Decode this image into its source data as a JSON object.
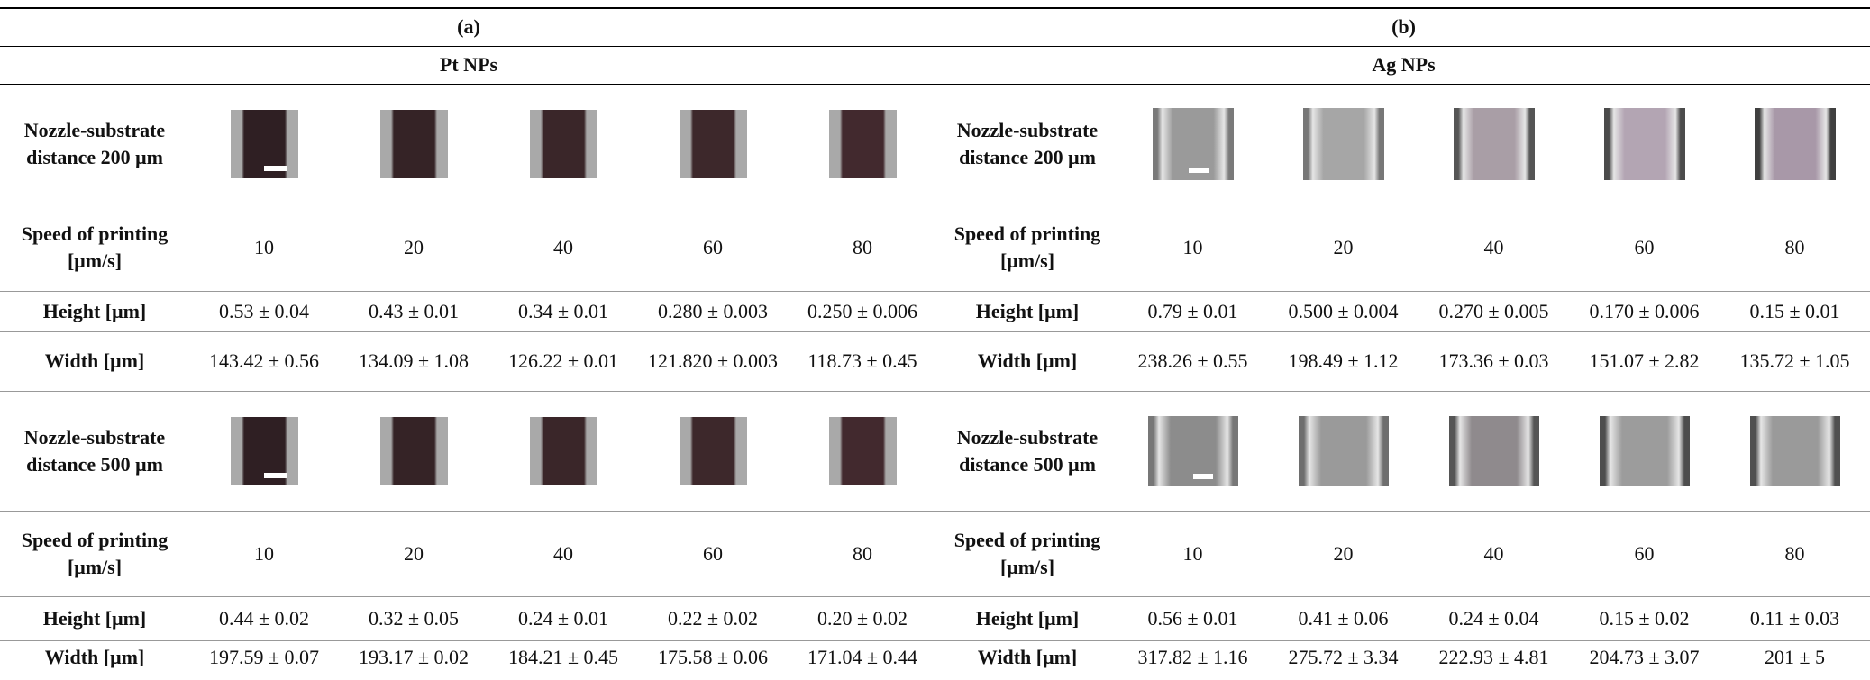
{
  "panels": [
    {
      "label": "(a)",
      "material": "Pt NPs",
      "blocks": [
        {
          "distance_label": "Nozzle-substrate distance 200 μm",
          "speed_label": "Speed of printing [μm/s]",
          "speeds": [
            10,
            20,
            40,
            60,
            80
          ],
          "height_label": "Height [μm]",
          "heights": [
            "0.53 ± 0.04",
            "0.43 ± 0.01",
            "0.34 ± 0.01",
            "0.280 ± 0.003",
            "0.250 ± 0.006"
          ],
          "width_label": "Width [μm]",
          "widths": [
            "143.42 ± 0.56",
            "134.09 ± 1.08",
            "126.22 ± 0.01",
            "121.820 ± 0.003",
            "118.73 ± 0.45"
          ]
        },
        {
          "distance_label": "Nozzle-substrate distance 500 μm",
          "speed_label": "Speed of printing [μm/s]",
          "speeds": [
            10,
            20,
            40,
            60,
            80
          ],
          "height_label": "Height [μm]",
          "heights": [
            "0.44 ± 0.02",
            "0.32 ± 0.05",
            "0.24 ± 0.01",
            "0.22 ± 0.02",
            "0.20 ± 0.02"
          ],
          "width_label": "Width [μm]",
          "widths": [
            "197.59 ± 0.07",
            "193.17 ± 0.02",
            "184.21 ± 0.45",
            "175.58 ± 0.06",
            "171.04 ± 0.44"
          ]
        }
      ]
    },
    {
      "label": "(b)",
      "material": "Ag NPs",
      "blocks": [
        {
          "distance_label": "Nozzle-substrate distance 200 μm",
          "speed_label": "Speed of printing [μm/s]",
          "speeds": [
            10,
            20,
            40,
            60,
            80
          ],
          "height_label": "Height [μm]",
          "heights": [
            "0.79 ± 0.01",
            "0.500 ± 0.004",
            "0.270 ± 0.005",
            "0.170 ± 0.006",
            "0.15 ± 0.01"
          ],
          "width_label": "Width [μm]",
          "widths": [
            "238.26 ± 0.55",
            "198.49 ± 1.12",
            "173.36 ± 0.03",
            "151.07 ± 2.82",
            "135.72 ± 1.05"
          ]
        },
        {
          "distance_label": "Nozzle-substrate distance 500 μm",
          "speed_label": "Speed of printing [μm/s]",
          "speeds": [
            10,
            20,
            40,
            60,
            80
          ],
          "height_label": "Height [μm]",
          "heights": [
            "0.56 ± 0.01",
            "0.41 ± 0.06",
            "0.24 ± 0.04",
            "0.15 ± 0.02",
            "0.11 ± 0.03"
          ],
          "width_label": "Width [μm]",
          "widths": [
            "317.82 ± 1.16",
            "275.72 ± 3.34",
            "222.93 ± 4.81",
            "204.73 ± 3.07",
            "201 ± 5"
          ]
        }
      ]
    }
  ]
}
